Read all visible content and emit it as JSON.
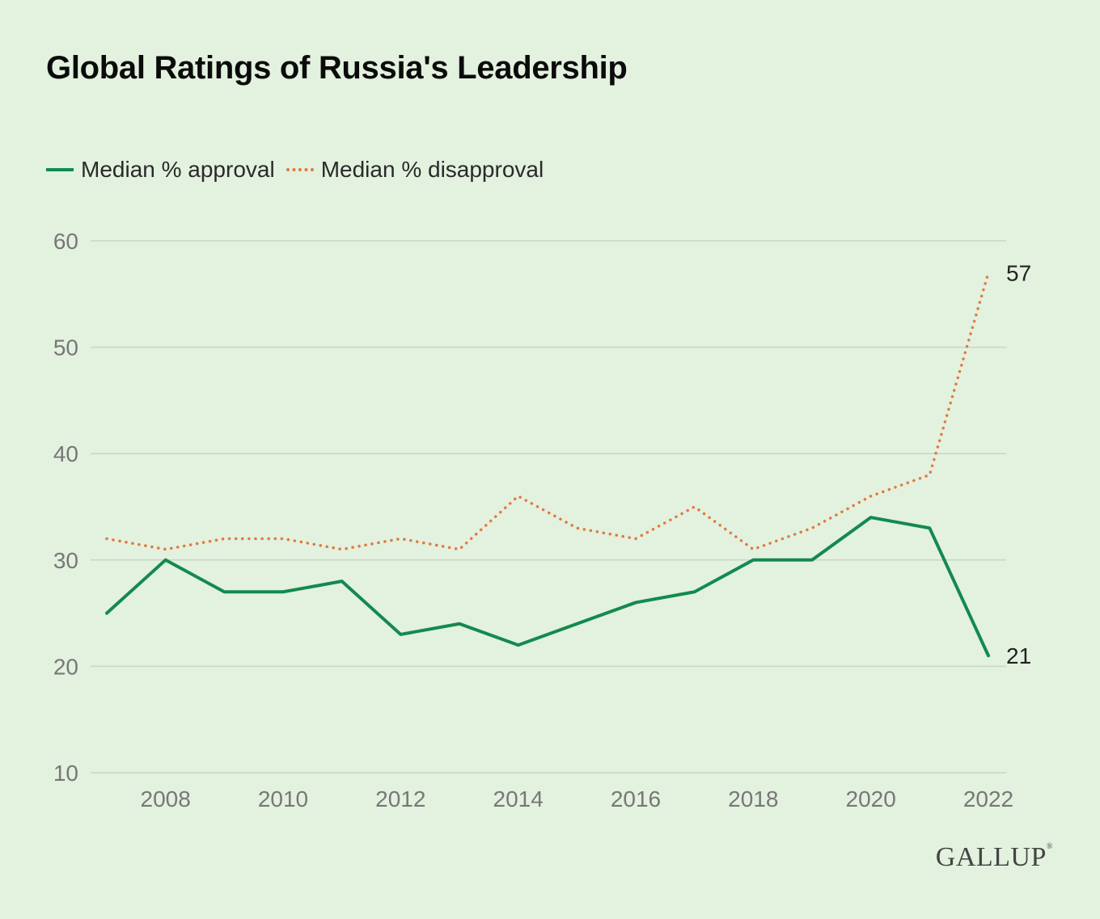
{
  "title": "Global Ratings of Russia's Leadership",
  "legend": [
    {
      "label": "Median % approval",
      "color": "#138a4d",
      "style": "solid"
    },
    {
      "label": "Median % disapproval",
      "color": "#e07a3f",
      "style": "dotted"
    }
  ],
  "brand": "GALLUP",
  "chart_data": {
    "type": "line",
    "title": "Global Ratings of Russia's Leadership",
    "xlabel": "",
    "ylabel": "",
    "x": [
      2007,
      2008,
      2009,
      2010,
      2011,
      2012,
      2013,
      2014,
      2015,
      2016,
      2017,
      2018,
      2019,
      2020,
      2021,
      2022
    ],
    "x_ticks": [
      "2008",
      "2010",
      "2012",
      "2014",
      "2016",
      "2018",
      "2020",
      "2022"
    ],
    "y_ticks": [
      "10",
      "20",
      "30",
      "40",
      "50",
      "60"
    ],
    "ylim": [
      10,
      60
    ],
    "xlim": [
      2007,
      2022
    ],
    "grid": true,
    "legend_position": "top-left",
    "series": [
      {
        "name": "Median % approval",
        "color": "#138a4d",
        "style": "solid",
        "values": [
          25,
          30,
          27,
          27,
          28,
          23,
          24,
          22,
          24,
          26,
          27,
          30,
          30,
          34,
          33,
          21
        ],
        "end_label": "21"
      },
      {
        "name": "Median % disapproval",
        "color": "#e07a3f",
        "style": "dotted",
        "values": [
          32,
          31,
          32,
          32,
          31,
          32,
          31,
          36,
          33,
          32,
          35,
          31,
          33,
          36,
          38,
          57
        ],
        "end_label": "57"
      }
    ]
  }
}
